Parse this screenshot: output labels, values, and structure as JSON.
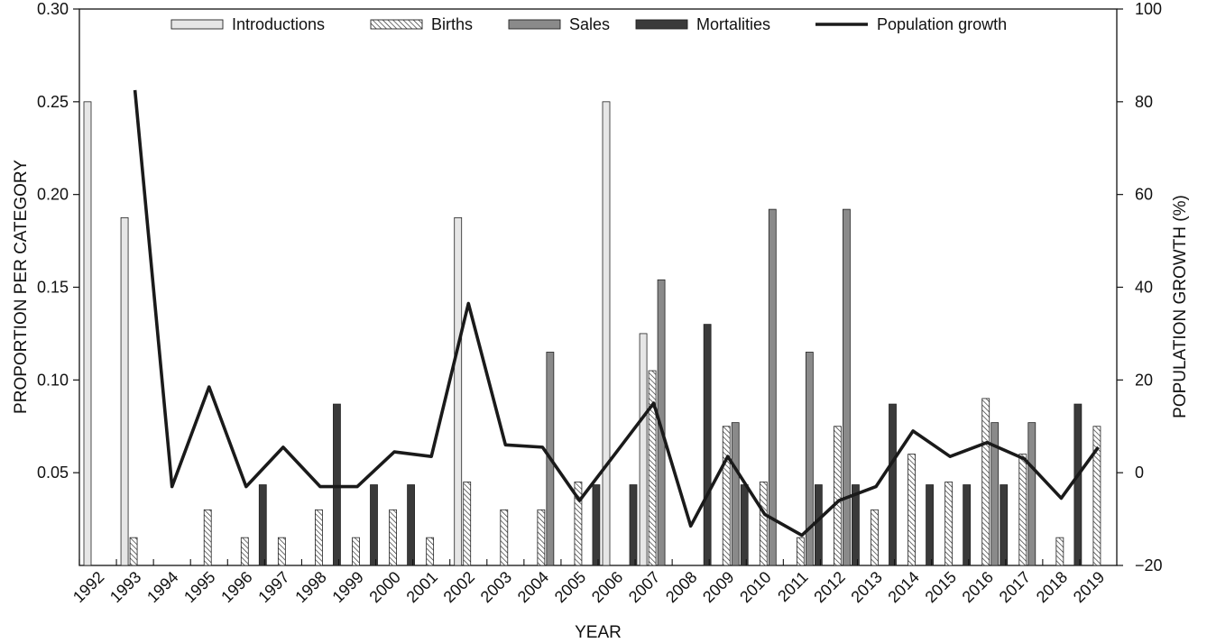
{
  "chart_data": {
    "type": "bar",
    "title": "",
    "xlabel": "YEAR",
    "ylabel": "PROPORTION PER CATEGORY",
    "y2label": "POPULATION GROWTH (%)",
    "ylim": [
      0,
      0.3
    ],
    "yticks": [
      "0.05",
      "0.10",
      "0.15",
      "0.20",
      "0.25",
      "0.30"
    ],
    "y2lim": [
      -20,
      100
    ],
    "y2ticks": [
      "−20",
      "0",
      "20",
      "40",
      "60",
      "80",
      "100"
    ],
    "legend_position": "top",
    "categories": [
      "1992",
      "1993",
      "1994",
      "1995",
      "1996",
      "1997",
      "1998",
      "1999",
      "2000",
      "2001",
      "2002",
      "2003",
      "2004",
      "2005",
      "2006",
      "2007",
      "2008",
      "2009",
      "2010",
      "2011",
      "2012",
      "2013",
      "2014",
      "2015",
      "2016",
      "2017",
      "2018",
      "2019"
    ],
    "series": [
      {
        "name": "Introductions",
        "kind": "bar",
        "color": "#e6e6e6",
        "values": [
          0.25,
          0.1875,
          0,
          0,
          0,
          0,
          0,
          0,
          0,
          0,
          0.1875,
          0,
          0,
          0,
          0.25,
          0.125,
          0,
          0,
          0,
          0,
          0,
          0,
          0,
          0,
          0,
          0,
          0,
          0
        ]
      },
      {
        "name": "Births",
        "kind": "bar",
        "pattern": "hatch",
        "values": [
          0,
          0.015,
          0,
          0.03,
          0.015,
          0.015,
          0.03,
          0.015,
          0.03,
          0.015,
          0.045,
          0.03,
          0.03,
          0.045,
          0,
          0.105,
          0,
          0.075,
          0.045,
          0.015,
          0.075,
          0.03,
          0.06,
          0.045,
          0.09,
          0.06,
          0.015,
          0.075
        ]
      },
      {
        "name": "Sales",
        "kind": "bar",
        "color": "#8a8a8a",
        "values": [
          0,
          0,
          0,
          0,
          0,
          0,
          0,
          0,
          0,
          0,
          0,
          0,
          0.115,
          0,
          0,
          0.154,
          0,
          0.077,
          0.192,
          0.115,
          0.192,
          0,
          0,
          0,
          0.077,
          0.077,
          0,
          0
        ]
      },
      {
        "name": "Mortalities",
        "kind": "bar",
        "color": "#3a3a3a",
        "values": [
          0,
          0,
          0,
          0,
          0.0435,
          0,
          0.087,
          0.0435,
          0.0435,
          0,
          0,
          0,
          0,
          0.0435,
          0.0435,
          0,
          0.13,
          0.0435,
          0,
          0.0435,
          0.0435,
          0.087,
          0.0435,
          0.0435,
          0.0435,
          0,
          0.087,
          0
        ]
      },
      {
        "name": "Population growth",
        "kind": "line",
        "axis": "right",
        "color": "#1a1a1a",
        "x": [
          "1993",
          "1994",
          "1995",
          "1996",
          "1997",
          "1998",
          "1999",
          "2000",
          "2001",
          "2002",
          "2003",
          "2004",
          "2005",
          "2006",
          "2007",
          "2008",
          "2009",
          "2010",
          "2011",
          "2012",
          "2013",
          "2014",
          "2015",
          "2016",
          "2017",
          "2018",
          "2019"
        ],
        "values": [
          82.5,
          -3,
          18.5,
          -3,
          5.5,
          -3,
          -3,
          4.5,
          3.5,
          36.5,
          6,
          5.5,
          -6,
          4.5,
          15,
          -11.5,
          3.5,
          -9,
          -13.5,
          -6,
          -3,
          9,
          3.5,
          6.5,
          3,
          -5.5,
          5.5
        ]
      }
    ]
  }
}
